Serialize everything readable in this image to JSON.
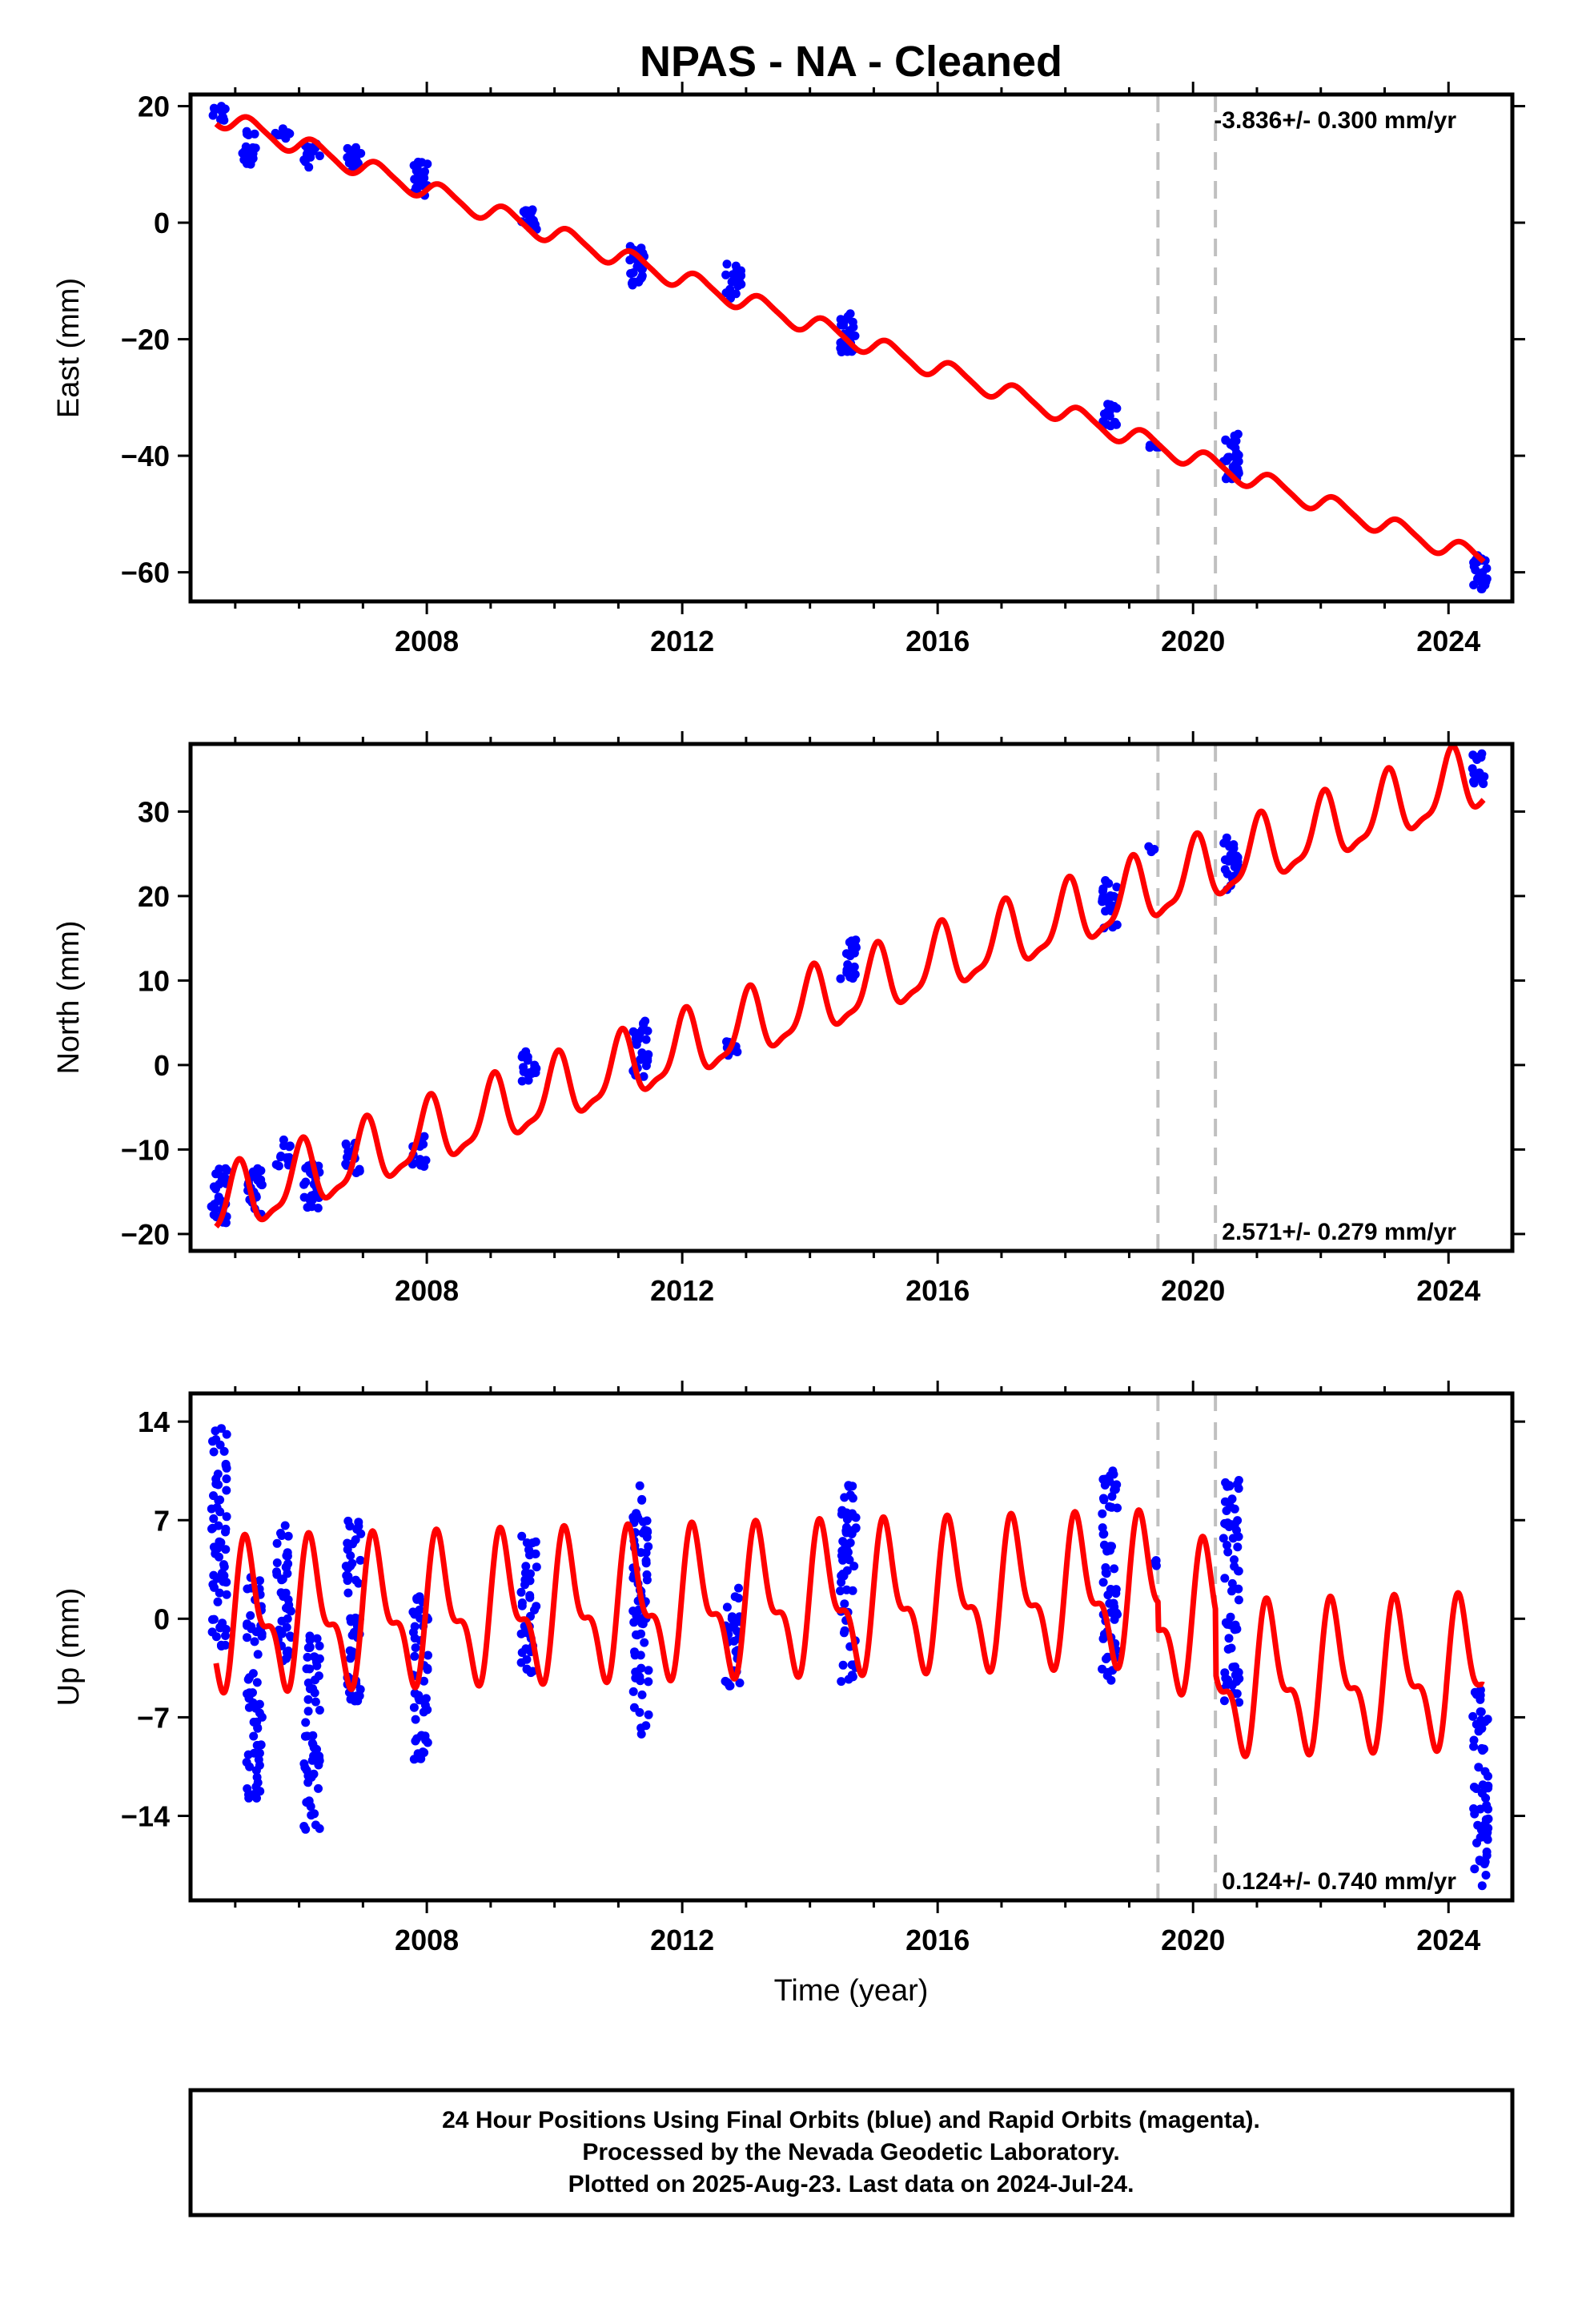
{
  "title": "NPAS  - NA - Cleaned",
  "colors": {
    "data": "#0000ff",
    "model": "#ff0000",
    "marker": "#c0c0c0",
    "frame": "#000000"
  },
  "xlabel": "Time (year)",
  "footer": {
    "line1": "24 Hour Positions Using Final Orbits (blue) and Rapid Orbits (magenta).",
    "line2": "Processed by the Nevada Geodetic Laboratory.",
    "line3": "Plotted on 2025-Aug-23. Last data on 2024-Jul-24."
  },
  "chart_data": [
    {
      "type": "scatter",
      "id": "east",
      "ylabel": "East (mm)",
      "rate_label": "-3.836+/- 0.300 mm/yr",
      "xlim": [
        2004.3,
        2025.0
      ],
      "ylim": [
        -65,
        22
      ],
      "xticks": [
        2008,
        2012,
        2016,
        2020,
        2024
      ],
      "yticks": [
        -60,
        -40,
        -20,
        0,
        20
      ],
      "vlines": [
        2019.45,
        2020.35
      ],
      "model": {
        "intercept_year": 2004.7,
        "intercept": 18.3,
        "slope": -3.836,
        "annual_amp": 1.6,
        "annual_phase": 0.0,
        "semiannual_amp": 0.3,
        "offsets": []
      },
      "clusters": [
        {
          "t": 2004.75,
          "mean": 18.5,
          "spread": 3.0
        },
        {
          "t": 2005.2,
          "mean": 13.0,
          "spread": 6.0
        },
        {
          "t": 2005.75,
          "mean": 15.0,
          "spread": 2.5
        },
        {
          "t": 2006.2,
          "mean": 11.5,
          "spread": 4.0
        },
        {
          "t": 2006.85,
          "mean": 11.0,
          "spread": 4.5
        },
        {
          "t": 2007.9,
          "mean": 7.5,
          "spread": 6.0
        },
        {
          "t": 2009.6,
          "mean": 0.5,
          "spread": 3.5
        },
        {
          "t": 2011.3,
          "mean": -7.5,
          "spread": 7.0
        },
        {
          "t": 2012.8,
          "mean": -10.0,
          "spread": 6.0
        },
        {
          "t": 2014.6,
          "mean": -19.0,
          "spread": 7.0
        },
        {
          "t": 2018.7,
          "mean": -33.0,
          "spread": 4.0
        },
        {
          "t": 2019.35,
          "mean": -38.5,
          "spread": 1.0
        },
        {
          "t": 2020.6,
          "mean": -40.0,
          "spread": 8.0
        },
        {
          "t": 2024.5,
          "mean": -60.0,
          "spread": 6.0
        }
      ]
    },
    {
      "type": "scatter",
      "id": "north",
      "ylabel": "North (mm)",
      "rate_label": "2.571+/- 0.279 mm/yr",
      "xlim": [
        2004.3,
        2025.0
      ],
      "ylim": [
        -22,
        38
      ],
      "xticks": [
        2008,
        2012,
        2016,
        2020,
        2024
      ],
      "yticks": [
        -20,
        -10,
        0,
        10,
        20,
        30
      ],
      "vlines": [
        2019.45,
        2020.35
      ],
      "model": {
        "intercept_year": 2004.7,
        "intercept": -17.0,
        "slope": 2.571,
        "annual_amp": 3.8,
        "annual_phase": 1.3,
        "semiannual_amp": 1.2,
        "offsets": []
      },
      "clusters": [
        {
          "t": 2004.75,
          "mean": -15.5,
          "spread": 6.5
        },
        {
          "t": 2005.3,
          "mean": -15.0,
          "spread": 6.0
        },
        {
          "t": 2005.75,
          "mean": -10.5,
          "spread": 3.5
        },
        {
          "t": 2006.2,
          "mean": -14.0,
          "spread": 6.0
        },
        {
          "t": 2006.85,
          "mean": -11.0,
          "spread": 4.0
        },
        {
          "t": 2007.9,
          "mean": -10.0,
          "spread": 4.0
        },
        {
          "t": 2009.6,
          "mean": 0.0,
          "spread": 4.0
        },
        {
          "t": 2011.35,
          "mean": 2.0,
          "spread": 7.0
        },
        {
          "t": 2012.8,
          "mean": 2.0,
          "spread": 2.0
        },
        {
          "t": 2014.6,
          "mean": 12.5,
          "spread": 5.0
        },
        {
          "t": 2018.7,
          "mean": 19.0,
          "spread": 6.0
        },
        {
          "t": 2019.35,
          "mean": 25.5,
          "spread": 1.0
        },
        {
          "t": 2020.6,
          "mean": 24.0,
          "spread": 6.5
        },
        {
          "t": 2024.5,
          "mean": 35.0,
          "spread": 4.0
        }
      ]
    },
    {
      "type": "scatter",
      "id": "up",
      "ylabel": "Up (mm)",
      "rate_label": "0.124+/- 0.740 mm/yr",
      "xlim": [
        2004.3,
        2025.0
      ],
      "ylim": [
        -20,
        16
      ],
      "xticks": [
        2008,
        2012,
        2016,
        2020,
        2024
      ],
      "yticks": [
        -14,
        -7,
        0,
        7,
        14
      ],
      "vlines": [
        2019.45,
        2020.35
      ],
      "model": {
        "intercept_year": 2004.7,
        "intercept": 0.0,
        "slope": 0.124,
        "annual_amp": 4.3,
        "annual_phase": 0.2,
        "semiannual_amp": 2.2,
        "offsets": [
          [
            2019.45,
            -2.0
          ],
          [
            2020.35,
            -4.5
          ]
        ]
      },
      "clusters": [
        {
          "t": 2004.75,
          "mean": 6.0,
          "spread": 16.0
        },
        {
          "t": 2005.3,
          "mean": -5.0,
          "spread": 16.0
        },
        {
          "t": 2005.75,
          "mean": 2.0,
          "spread": 10.0
        },
        {
          "t": 2006.2,
          "mean": -7.5,
          "spread": 15.0
        },
        {
          "t": 2006.85,
          "mean": 0.5,
          "spread": 13.0
        },
        {
          "t": 2007.9,
          "mean": -4.0,
          "spread": 12.0
        },
        {
          "t": 2009.6,
          "mean": 1.0,
          "spread": 10.0
        },
        {
          "t": 2011.35,
          "mean": 0.5,
          "spread": 18.0
        },
        {
          "t": 2012.8,
          "mean": -1.5,
          "spread": 8.0
        },
        {
          "t": 2014.6,
          "mean": 2.5,
          "spread": 14.0
        },
        {
          "t": 2018.7,
          "mean": 3.0,
          "spread": 15.0
        },
        {
          "t": 2019.35,
          "mean": 4.0,
          "spread": 0.5
        },
        {
          "t": 2020.6,
          "mean": 2.0,
          "spread": 16.0
        },
        {
          "t": 2024.5,
          "mean": -12.0,
          "spread": 14.0
        }
      ]
    }
  ]
}
